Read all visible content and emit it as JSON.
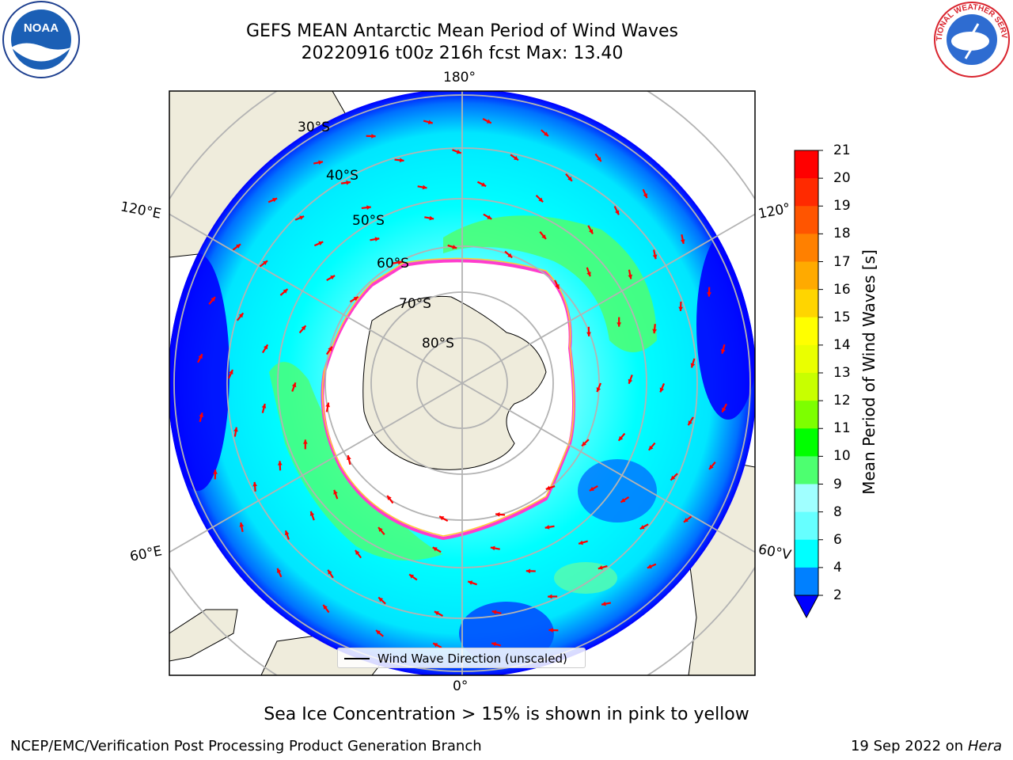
{
  "header": {
    "title": "GEFS MEAN Antarctic Mean Period of Wind Waves",
    "subtitle": "20220916 t00z 216h fcst   Max: 13.40"
  },
  "map": {
    "projection": "south-polar-stereographic",
    "lat_labels": [
      "30°S",
      "40°S",
      "50°S",
      "60°S",
      "70°S",
      "80°S"
    ],
    "lon_labels": {
      "top": "180°",
      "bottom": "0°",
      "left_upper": "120°E",
      "left_lower": "60°E",
      "right_upper": "120°",
      "right_lower": "60°V"
    },
    "colors": {
      "land": "#efecdc",
      "ice_free_ocean_outer": "#00ffff",
      "ice": "#ffffff",
      "ice_edge": "#ff3ccc",
      "arrow": "#ff0000"
    }
  },
  "colorbar": {
    "label": "Mean Period of Wind Waves [s]",
    "ticks": [
      "21",
      "20",
      "19",
      "18",
      "17",
      "16",
      "15",
      "14",
      "13",
      "12",
      "11",
      "10",
      "9",
      "8",
      "6",
      "4",
      "2"
    ],
    "colors": [
      "#ff0000",
      "#ff2a00",
      "#ff5500",
      "#ff8000",
      "#ffaa00",
      "#ffd500",
      "#ffff00",
      "#eaff00",
      "#c8ff00",
      "#7dff00",
      "#00ff00",
      "#4dff70",
      "#a0ffff",
      "#66ffff",
      "#00ffff",
      "#0080ff",
      "#0000ff"
    ]
  },
  "legend": {
    "label": "Wind Wave Direction (unscaled)"
  },
  "notes": {
    "ice": "Sea Ice Concentration > 15% is shown in pink to yellow"
  },
  "footer": {
    "left": "NCEP/EMC/Verification Post Processing Product Generation Branch",
    "date": "19 Sep 2022 on",
    "machine": "Hera"
  },
  "logos": {
    "noaa": "NOAA",
    "nws": "NATIONAL WEATHER SERVICE"
  }
}
